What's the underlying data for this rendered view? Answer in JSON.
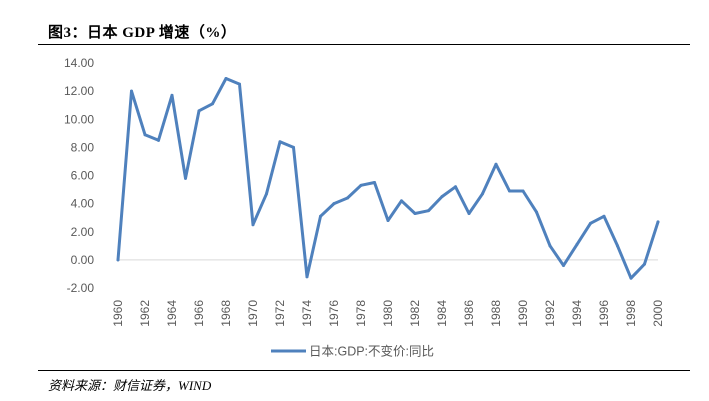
{
  "figure": {
    "title": "图3：日本 GDP 增速（%）",
    "source": "资料来源：财信证券，WIND"
  },
  "chart_data": {
    "type": "line",
    "title": "日本 GDP 增速（%）",
    "xlabel": "",
    "ylabel": "",
    "ylim": [
      -2,
      14
    ],
    "y_ticks": [
      "-2.00",
      "0.00",
      "2.00",
      "4.00",
      "6.00",
      "8.00",
      "10.00",
      "12.00",
      "14.00"
    ],
    "x_tick_labels": [
      "1960",
      "1962",
      "1964",
      "1966",
      "1968",
      "1970",
      "1972",
      "1974",
      "1976",
      "1978",
      "1980",
      "1982",
      "1984",
      "1986",
      "1988",
      "1990",
      "1992",
      "1994",
      "1996",
      "1998",
      "2000"
    ],
    "x": [
      1960,
      1961,
      1962,
      1963,
      1964,
      1965,
      1966,
      1967,
      1968,
      1969,
      1970,
      1971,
      1972,
      1973,
      1974,
      1975,
      1976,
      1977,
      1978,
      1979,
      1980,
      1981,
      1982,
      1983,
      1984,
      1985,
      1986,
      1987,
      1988,
      1989,
      1990,
      1991,
      1992,
      1993,
      1994,
      1995,
      1996,
      1997,
      1998,
      1999,
      2000
    ],
    "series": [
      {
        "name": "日本:GDP:不变价:同比",
        "color": "#4F81BD",
        "values": [
          0.0,
          12.0,
          8.9,
          8.5,
          11.7,
          5.8,
          10.6,
          11.1,
          12.9,
          12.5,
          2.5,
          4.7,
          8.4,
          8.0,
          -1.2,
          3.1,
          4.0,
          4.4,
          5.3,
          5.5,
          2.8,
          4.2,
          3.3,
          3.5,
          4.5,
          5.2,
          3.3,
          4.7,
          6.8,
          4.9,
          4.9,
          3.4,
          1.0,
          -0.4,
          1.1,
          2.6,
          3.1,
          1.0,
          -1.3,
          -0.3,
          2.7
        ]
      }
    ],
    "legend": "bottom",
    "grid": false
  }
}
